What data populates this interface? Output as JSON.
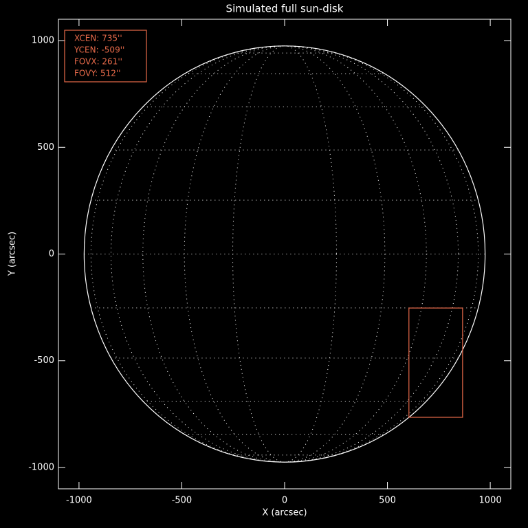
{
  "chart_data": {
    "type": "sun-disk",
    "title": "Simulated full sun-disk",
    "xlabel": "X (arcsec)",
    "ylabel": "Y (arcsec)",
    "xlim": [
      -1100,
      1100
    ],
    "ylim": [
      -1100,
      1100
    ],
    "xticks": [
      -1000,
      -500,
      0,
      500,
      1000
    ],
    "yticks": [
      -1000,
      -500,
      0,
      500,
      1000
    ],
    "solar_radius": 975,
    "grid_spacing": 15,
    "color": "#ffffff",
    "fov_box": {
      "xcen": 735,
      "ycen": -509,
      "fovx": 261,
      "fovy": 512,
      "color": "#e86a4a",
      "labels": [
        "XCEN:  735''",
        "YCEN:  -509''",
        "FOVX:  261''",
        "FOVY:  512''"
      ]
    }
  }
}
